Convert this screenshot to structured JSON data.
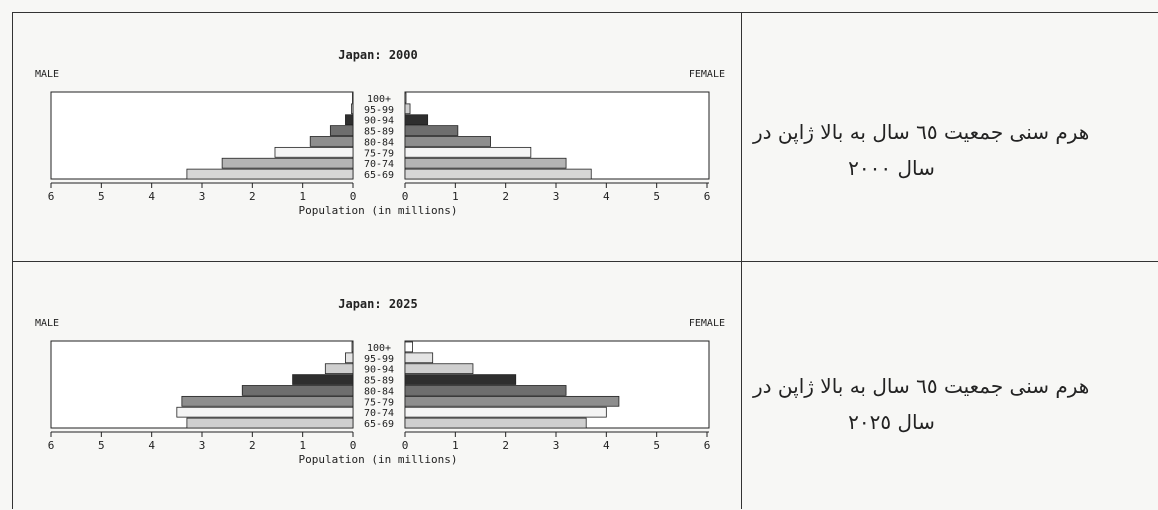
{
  "rows": [
    {
      "caption_line1": "هرم سنی جمعیت ٦٥ سال به بالا ژاپن در",
      "caption_line2": "سال ٢٠٠٠"
    },
    {
      "caption_line1": "هرم سنی جمعیت ٦٥ سال به بالا ژاپن در",
      "caption_line2": "سال ٢٠٢٥"
    }
  ],
  "chart_data": [
    {
      "type": "bar",
      "orientation": "horizontal-pyramid",
      "title": "Japan: 2000",
      "left_label": "MALE",
      "right_label": "FEMALE",
      "xlabel": "Population (in millions)",
      "xlim": [
        0,
        6
      ],
      "xticks": [
        "6",
        "5",
        "4",
        "3",
        "2",
        "1",
        "0",
        "0",
        "1",
        "2",
        "3",
        "4",
        "5",
        "6"
      ],
      "categories": [
        "100+",
        "95-99",
        "90-94",
        "85-89",
        "80-84",
        "75-79",
        "70-74",
        "65-69"
      ],
      "series": [
        {
          "name": "MALE",
          "values": [
            0.01,
            0.03,
            0.15,
            0.45,
            0.85,
            1.55,
            2.6,
            3.3
          ]
        },
        {
          "name": "FEMALE",
          "values": [
            0.02,
            0.1,
            0.45,
            1.05,
            1.7,
            2.5,
            3.2,
            3.7
          ]
        }
      ],
      "colors": [
        "#ffffff",
        "#cfcfcf",
        "#2e2e2e",
        "#6e6e6e",
        "#8e8e8e",
        "#f4f4f4",
        "#b4b4b4",
        "#d6d6d6"
      ]
    },
    {
      "type": "bar",
      "orientation": "horizontal-pyramid",
      "title": "Japan: 2025",
      "left_label": "MALE",
      "right_label": "FEMALE",
      "xlabel": "Population (in millions)",
      "xlim": [
        0,
        6
      ],
      "xticks": [
        "6",
        "5",
        "4",
        "3",
        "2",
        "1",
        "0",
        "0",
        "1",
        "2",
        "3",
        "4",
        "5",
        "6"
      ],
      "categories": [
        "100+",
        "95-99",
        "90-94",
        "85-89",
        "80-84",
        "75-79",
        "70-74",
        "65-69"
      ],
      "series": [
        {
          "name": "MALE",
          "values": [
            0.02,
            0.15,
            0.55,
            1.2,
            2.2,
            3.4,
            3.5,
            3.3
          ]
        },
        {
          "name": "FEMALE",
          "values": [
            0.15,
            0.55,
            1.35,
            2.2,
            3.2,
            4.25,
            4.0,
            3.6
          ]
        }
      ],
      "colors": [
        "#ffffff",
        "#e4e4e4",
        "#cfcfcf",
        "#2e2e2e",
        "#6e6e6e",
        "#8e8e8e",
        "#f4f4f4",
        "#cfcfcf"
      ]
    }
  ]
}
